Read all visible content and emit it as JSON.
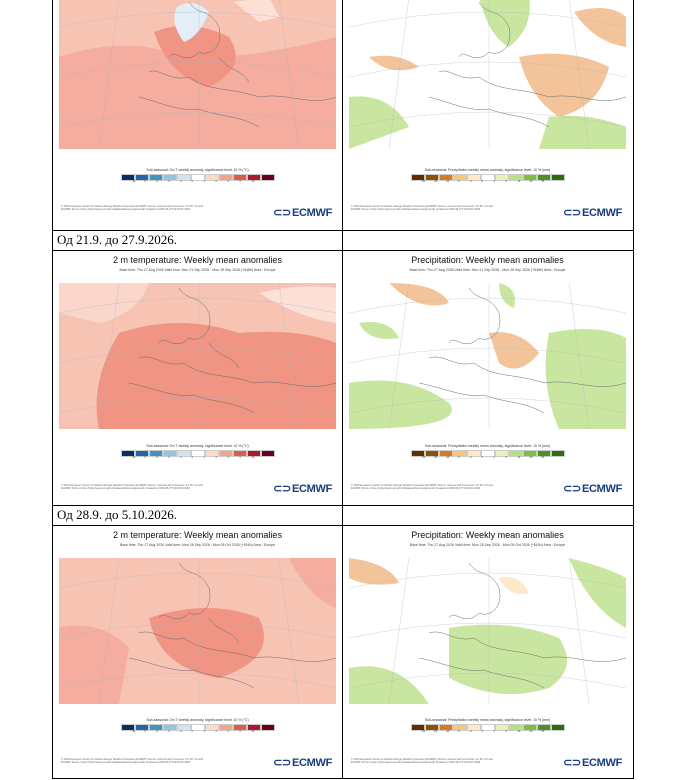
{
  "sections": [
    {
      "date_label": "",
      "left": {
        "title": "",
        "subtitle": "",
        "legend_title": "Sub-seasonal: 2m T weekly anomaly, significance level: 10 % (°C)"
      },
      "right": {
        "title": "",
        "subtitle": "",
        "legend_title": "Sub-seasonal: Precipitation weekly mean anomaly, significance level: 10 % (mm)"
      }
    },
    {
      "date_label": "Од 21.9. до 27.9.2026.",
      "left": {
        "title": "2 m temperature: Weekly mean anomalies",
        "subtitle": "Base time: Thu 27 Aug 2026 Valid time: Mon 21 Sep 2026 - Mon 28 Sep 2026 (+648h) Area : Europe",
        "legend_title": "Sub-seasonal: 2m T weekly anomaly, significance level: 10 % (°C)"
      },
      "right": {
        "title": "Precipitation: Weekly mean anomalies",
        "subtitle": "Base time: Thu 27 Aug 2026 Valid time: Mon 21 Sep 2026 - Mon 28 Sep 2026 (+648h) Area : Europe",
        "legend_title": "Sub-seasonal: Precipitation weekly mean anomaly, significance level: 10 % (mm)"
      }
    },
    {
      "date_label": "Од 28.9. до 5.10.2026.",
      "left": {
        "title": "2 m temperature: Weekly mean anomalies",
        "subtitle": "Base time: Thu 27 Aug 2026 Valid time: Mon 28 Sep 2026 - Mon 05 Oct 2026 (+816h) Area : Europe",
        "legend_title": "Sub-seasonal: 2m T weekly anomaly, significance level: 10 % (°C)"
      },
      "right": {
        "title": "Precipitation: Weekly mean anomalies",
        "subtitle": "Base time: Thu 27 Aug 2026 Valid time: Mon 28 Sep 2026 - Mon 05 Oct 2026 (+816h) Area : Europe",
        "legend_title": "Sub-seasonal: Precipitation weekly mean anomaly, significance level: 10 % (mm)"
      }
    }
  ],
  "temp_legend": {
    "colors": [
      "#053061",
      "#2166ac",
      "#4393c3",
      "#92c5de",
      "#d1e5f0",
      "#ffffff",
      "#fddbc7",
      "#f4a582",
      "#d6604d",
      "#b2182b",
      "#67001f"
    ],
    "ticks": [
      "-10",
      "-6",
      "-4",
      "-2",
      "-1",
      "0",
      "1",
      "2",
      "4",
      "6",
      "10"
    ]
  },
  "precip_legend": {
    "colors": [
      "#5c3007",
      "#8c510a",
      "#d97a1c",
      "#f6c67a",
      "#fde9c8",
      "#ffffff",
      "#e5f3b8",
      "#b8e07f",
      "#7fbf3f",
      "#4d9221",
      "#2f6b0f"
    ],
    "ticks": [
      "-50",
      "-20",
      "-10",
      "-5",
      "-2",
      "0",
      "2",
      "5",
      "10",
      "20",
      "50"
    ]
  },
  "fine_print": "© 2026 European Centre for Medium-Range Weather Forecasts (ECMWF) Source: www.ecmwf.int Licence: CC BY 4.0 and ECMWF Terms of Use (https://apps.ecmwf.int/datasets/licences/general/) Created at 2026-08-27T19:32:04.426Z",
  "logo_text": "ECMWF",
  "colors": {
    "temp_bg": "#f7c4b4",
    "temp_warm": "#f08d80",
    "precip_wet": "#c9e6a0",
    "precip_dry": "#f3c49a",
    "ocean_grid": "#9aa7b6"
  }
}
